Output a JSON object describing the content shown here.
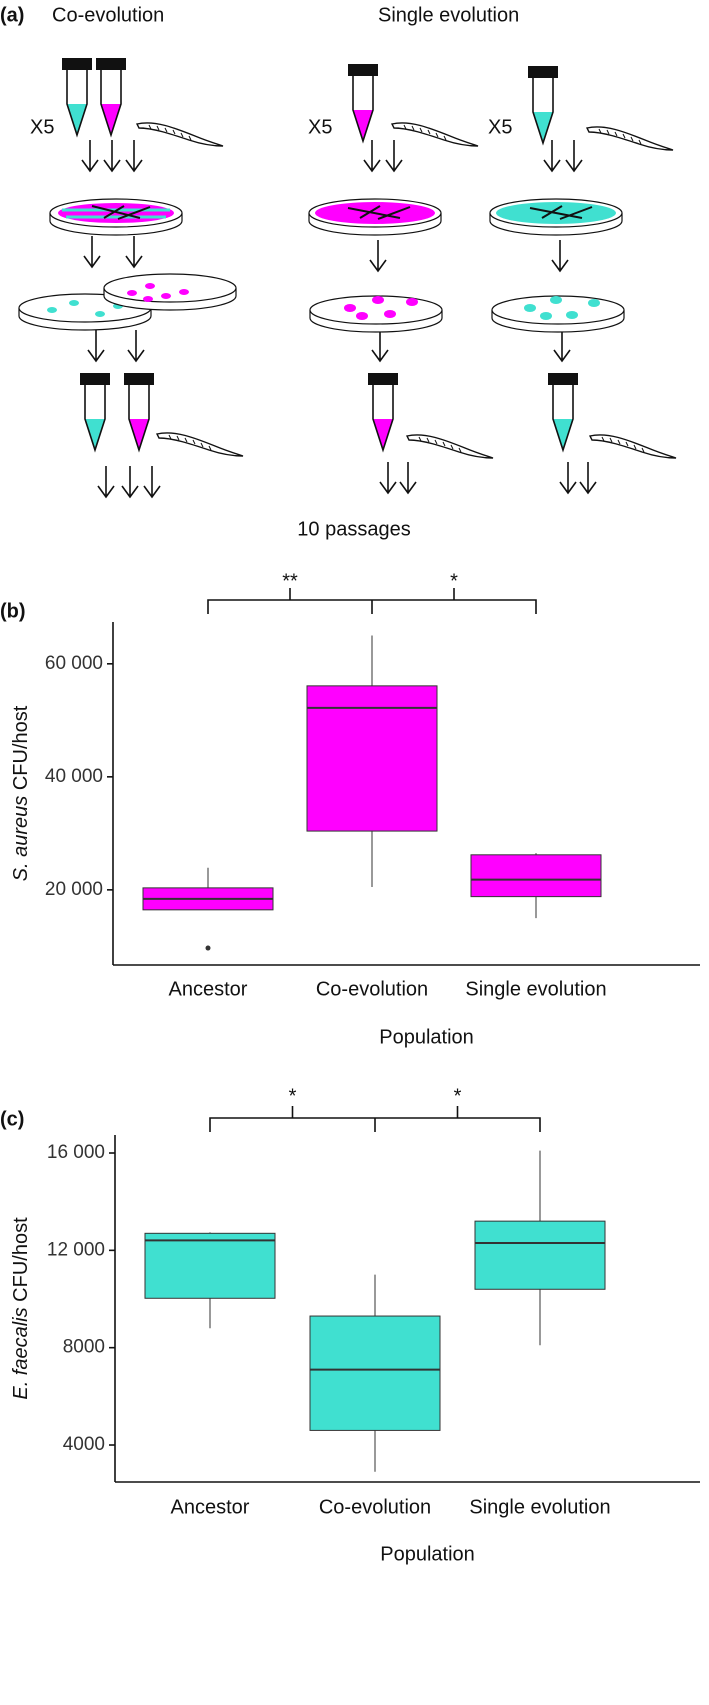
{
  "panel_a": {
    "label": "(a)",
    "titles": [
      "Co-evolution",
      "Single evolution"
    ],
    "multipliers": [
      "X5",
      "X5",
      "X5"
    ],
    "footer": "10 passages"
  },
  "chart_data": [
    {
      "type": "box",
      "panel_label": "(b)",
      "y_label_species": "S. aureus",
      "y_label": "CFU/host",
      "x_label": "Population",
      "categories": [
        "Ancestor",
        "Co-evolution",
        "Single evolution"
      ],
      "color": "#ff00ff",
      "boxes": [
        {
          "q1": 16460,
          "median": 18400,
          "q3": 20350,
          "whisker_high": 23900,
          "outliers": [
            9700
          ]
        },
        {
          "whisker_low": 20500,
          "q1": 30400,
          "median": 52200,
          "q3": 56100,
          "whisker_high": 65000,
          "outliers": []
        },
        {
          "whisker_low": 15000,
          "q1": 18800,
          "median": 21800,
          "q3": 26200,
          "whisker_high": 26500,
          "outliers": []
        }
      ],
      "significance": [
        "**",
        "*"
      ],
      "ylim": [
        6700,
        67400
      ],
      "yticks": [
        {
          "value": 20000,
          "label": "20 000"
        },
        {
          "value": 40000,
          "label": "40 000"
        },
        {
          "value": 60000,
          "label": "60 000"
        }
      ]
    },
    {
      "type": "box",
      "panel_label": "(c)",
      "y_label_species": "E. faecalis",
      "y_label": "CFU/host",
      "x_label": "Population",
      "categories": [
        "Ancestor",
        "Co-evolution",
        "Single evolution"
      ],
      "color": "#40e0d0",
      "boxes": [
        {
          "whisker_low": 8800,
          "q1": 10030,
          "median": 12410,
          "q3": 12700,
          "whisker_high": 12740,
          "outliers": []
        },
        {
          "whisker_low": 2900,
          "q1": 4600,
          "median": 7100,
          "q3": 9300,
          "whisker_high": 11000,
          "outliers": []
        },
        {
          "whisker_low": 8100,
          "q1": 10400,
          "median": 12300,
          "q3": 13200,
          "whisker_high": 16100,
          "outliers": []
        }
      ],
      "significance": [
        "*",
        "*"
      ],
      "ylim": [
        2480,
        16740
      ],
      "yticks": [
        4000,
        8000,
        {
          "value": 12000,
          "label": "12 000"
        },
        {
          "value": 16000,
          "label": "16 000"
        }
      ]
    }
  ]
}
